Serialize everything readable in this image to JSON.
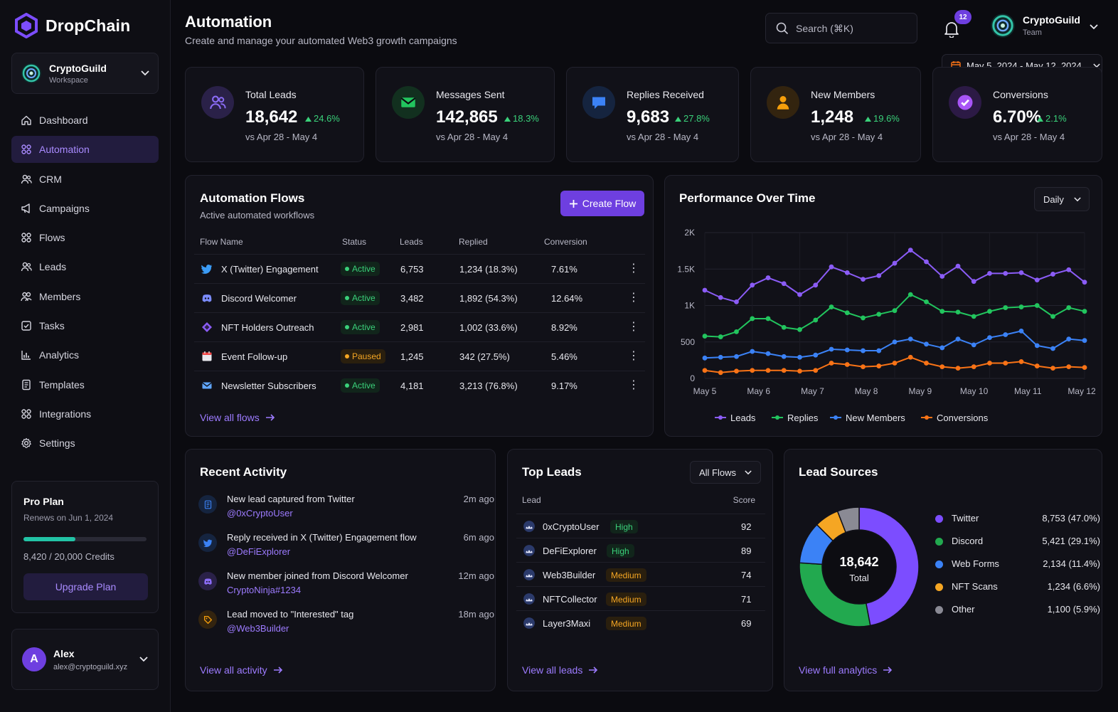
{
  "app": {
    "name": "DropChain"
  },
  "workspace": {
    "name": "CryptoGuild",
    "label": "Workspace"
  },
  "nav": [
    {
      "label": "Dashboard",
      "icon": "home-icon"
    },
    {
      "label": "Automation",
      "icon": "grid-icon",
      "active": true
    },
    {
      "label": "CRM",
      "icon": "users-icon"
    },
    {
      "label": "Campaigns",
      "icon": "megaphone-icon"
    },
    {
      "label": "Flows",
      "icon": "grid-icon"
    },
    {
      "label": "Leads",
      "icon": "users-icon"
    },
    {
      "label": "Members",
      "icon": "members-icon"
    },
    {
      "label": "Tasks",
      "icon": "checkbox-icon"
    },
    {
      "label": "Analytics",
      "icon": "chart-icon"
    },
    {
      "label": "Templates",
      "icon": "document-icon"
    },
    {
      "label": "Integrations",
      "icon": "grid-icon"
    },
    {
      "label": "Settings",
      "icon": "gear-icon"
    }
  ],
  "plan": {
    "title": "Pro Plan",
    "renews": "Renews on Jun 1, 2024",
    "credits_text": "8,420 / 20,000 Credits",
    "credits_used_fraction": 0.421,
    "upgrade_label": "Upgrade Plan"
  },
  "user": {
    "initial": "A",
    "name": "Alex",
    "email": "alex@cryptoguild.xyz"
  },
  "header": {
    "title": "Automation",
    "subtitle": "Create and manage your automated Web3 growth campaigns",
    "search_placeholder": "Search (⌘K)",
    "notification_count": "12",
    "team_name": "CryptoGuild",
    "team_label": "Team",
    "date_range": "May 5, 2024 - May 12, 2024"
  },
  "kpis": [
    {
      "label": "Total Leads",
      "value": "18,642",
      "delta": "24.6%",
      "compare": "vs Apr 28 - May 4",
      "icon": "users-icon",
      "color": "#8b6cf6",
      "bg": "#2a2148"
    },
    {
      "label": "Messages Sent",
      "value": "142,865",
      "delta": "18.3%",
      "compare": "vs Apr 28 - May 4",
      "icon": "mail-icon",
      "color": "#22c55e",
      "bg": "#12301f"
    },
    {
      "label": "Replies Received",
      "value": "9,683",
      "delta": "27.8%",
      "compare": "vs Apr 28 - May 4",
      "icon": "chat-icon",
      "color": "#3b82f6",
      "bg": "#15243f"
    },
    {
      "label": "New Members",
      "value": "1,248",
      "delta": "19.6%",
      "compare": "vs Apr 28 - May 4",
      "icon": "person-icon",
      "color": "#f59e0b",
      "bg": "#33240f"
    },
    {
      "label": "Conversions",
      "value": "6.70%",
      "delta": "2.1%",
      "compare": "vs Apr 28 - May 4",
      "icon": "check-circle-icon",
      "color": "#a855f7",
      "bg": "#2c1a45"
    }
  ],
  "flows": {
    "title": "Automation Flows",
    "subtitle": "Active automated workflows",
    "create_label": "Create Flow",
    "columns": [
      "Flow Name",
      "Status",
      "Leads",
      "Replied",
      "Conversion"
    ],
    "rows": [
      {
        "name": "X (Twitter) Engagement",
        "status": "Active",
        "leads": "6,753",
        "replied": "1,234 (18.3%)",
        "conversion": "7.61%",
        "icon": "twitter-icon"
      },
      {
        "name": "Discord Welcomer",
        "status": "Active",
        "leads": "3,482",
        "replied": "1,892 (54.3%)",
        "conversion": "12.64%",
        "icon": "discord-icon"
      },
      {
        "name": "NFT Holders Outreach",
        "status": "Active",
        "leads": "2,981",
        "replied": "1,002 (33.6%)",
        "conversion": "8.92%",
        "icon": "nft-icon"
      },
      {
        "name": "Event Follow-up",
        "status": "Paused",
        "leads": "1,245",
        "replied": "342 (27.5%)",
        "conversion": "5.46%",
        "icon": "calendar-icon"
      },
      {
        "name": "Newsletter Subscribers",
        "status": "Active",
        "leads": "4,181",
        "replied": "3,213 (76.8%)",
        "conversion": "9.17%",
        "icon": "mail-icon"
      }
    ],
    "view_all": "View all flows"
  },
  "performance": {
    "title": "Performance Over Time",
    "period": "Daily"
  },
  "chart_data": {
    "type": "line",
    "title": "Performance Over Time",
    "x_labels": [
      "May 5",
      "May 6",
      "May 7",
      "May 8",
      "May 9",
      "May 10",
      "May 11",
      "May 12"
    ],
    "ylim": [
      0,
      2000
    ],
    "y_ticks": [
      "0",
      "500",
      "1K",
      "1.5K",
      "2K"
    ],
    "y_tick_values": [
      0,
      500,
      1000,
      1500,
      2000
    ],
    "grid": true,
    "legend_position": "bottom",
    "series": [
      {
        "name": "Leads",
        "color": "#8b5cf6",
        "values": [
          1210,
          1110,
          1050,
          1280,
          1380,
          1300,
          1150,
          1280,
          1530,
          1450,
          1360,
          1410,
          1580,
          1760,
          1600,
          1400,
          1540,
          1330,
          1440,
          1440,
          1450,
          1350,
          1430,
          1490,
          1320
        ]
      },
      {
        "name": "Replies",
        "color": "#22c55e",
        "values": [
          580,
          570,
          640,
          820,
          820,
          700,
          670,
          800,
          980,
          900,
          830,
          880,
          930,
          1150,
          1050,
          920,
          910,
          850,
          920,
          970,
          980,
          1000,
          850,
          970,
          920
        ]
      },
      {
        "name": "New Members",
        "color": "#3b82f6",
        "values": [
          280,
          290,
          300,
          370,
          340,
          300,
          290,
          320,
          400,
          390,
          380,
          380,
          500,
          540,
          470,
          420,
          540,
          460,
          560,
          600,
          650,
          450,
          410,
          540,
          520
        ]
      },
      {
        "name": "Conversions",
        "color": "#f97316",
        "values": [
          110,
          80,
          100,
          110,
          110,
          110,
          100,
          110,
          210,
          190,
          160,
          170,
          210,
          290,
          210,
          160,
          140,
          160,
          210,
          210,
          230,
          170,
          140,
          160,
          150
        ]
      }
    ]
  },
  "activity": {
    "title": "Recent Activity",
    "items": [
      {
        "text": "New lead captured from Twitter",
        "link": "@0xCryptoUser",
        "time": "2m ago",
        "icon": "document-icon",
        "color": "#3b82f6",
        "bg": "#15243f"
      },
      {
        "text": "Reply received in X (Twitter) Engagement flow",
        "link": "@DeFiExplorer",
        "time": "6m ago",
        "icon": "twitter-icon",
        "color": "#3b82f6",
        "bg": "#15243f"
      },
      {
        "text": "New member joined from Discord Welcomer",
        "link": "CryptoNinja#1234",
        "time": "12m ago",
        "icon": "discord-icon",
        "color": "#8b6cf6",
        "bg": "#2a2148"
      },
      {
        "text": "Lead moved to \"Interested\" tag",
        "link": "@Web3Builder",
        "time": "18m ago",
        "icon": "tag-icon",
        "color": "#f59e0b",
        "bg": "#33240f"
      }
    ],
    "view_all": "View all activity"
  },
  "top_leads": {
    "title": "Top Leads",
    "filter": "All Flows",
    "col_lead": "Lead",
    "col_score": "Score",
    "rows": [
      {
        "name": "0xCryptoUser",
        "tag": "High",
        "score": "92"
      },
      {
        "name": "DeFiExplorer",
        "tag": "High",
        "score": "89"
      },
      {
        "name": "Web3Builder",
        "tag": "Medium",
        "score": "74"
      },
      {
        "name": "NFTCollector",
        "tag": "Medium",
        "score": "71"
      },
      {
        "name": "Layer3Maxi",
        "tag": "Medium",
        "score": "69"
      }
    ],
    "view_all": "View all leads"
  },
  "sources": {
    "title": "Lead Sources",
    "total": "18,642",
    "total_label": "Total",
    "items": [
      {
        "name": "Twitter",
        "value": "8,753 (47.0%)",
        "pct": 47.0,
        "color": "#7c4dff"
      },
      {
        "name": "Discord",
        "value": "5,421 (29.1%)",
        "pct": 29.1,
        "color": "#22a94f"
      },
      {
        "name": "Web Forms",
        "value": "2,134 (11.4%)",
        "pct": 11.4,
        "color": "#3b82f6"
      },
      {
        "name": "NFT Scans",
        "value": "1,234 (6.6%)",
        "pct": 6.6,
        "color": "#f5a623"
      },
      {
        "name": "Other",
        "value": "1,100 (5.9%)",
        "pct": 5.9,
        "color": "#8a8a94"
      }
    ],
    "view_all": "View full analytics"
  }
}
